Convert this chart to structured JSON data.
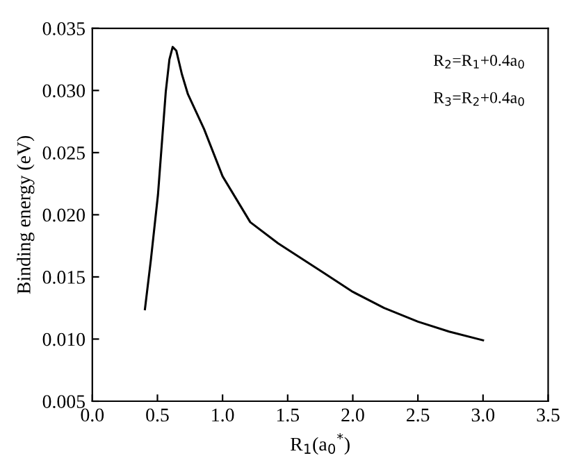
{
  "chart_data": {
    "type": "line",
    "xlabel": "R$_{1}$(a$_{0}$$^{*}$)",
    "ylabel": "Binding energy (eV)",
    "annotations": [
      "R$_{2}$=R$_{1}$+0.4a$_{0}$",
      "R$_{3}$=R$_{2}$+0.4a$_{0}$"
    ],
    "series": [
      {
        "color": "#000000",
        "x": [
          0.404,
          0.45,
          0.504,
          0.564,
          0.592,
          0.617,
          0.645,
          0.688,
          0.734,
          0.787,
          0.858,
          1.0,
          1.213,
          1.426,
          1.5,
          1.78,
          2.0,
          2.24,
          2.5,
          2.74,
          3.0
        ],
        "values": [
          0.0124,
          0.0164,
          0.0216,
          0.0299,
          0.0325,
          0.0335,
          0.0332,
          0.0313,
          0.0297,
          0.0285,
          0.0269,
          0.0231,
          0.0194,
          0.0177,
          0.0172,
          0.0153,
          0.0138,
          0.0125,
          0.0114,
          0.0106,
          0.0099
        ]
      }
    ],
    "xlim": [
      0.0,
      3.5
    ],
    "xticks": [
      {
        "value": 0,
        "label": "0.0"
      },
      0.5,
      {
        "value": 1,
        "label": "1.0"
      },
      1.5,
      {
        "value": 2,
        "label": "2.0"
      },
      2.5,
      {
        "value": 3,
        "label": "3.0"
      },
      3.5
    ],
    "ylim": [
      0.005,
      0.035
    ],
    "yticks": [
      0.005,
      {
        "value": 0.01,
        "label": "0.010"
      },
      0.015,
      {
        "value": 0.02,
        "label": "0.020"
      },
      0.025,
      {
        "value": 0.03,
        "label": "0.030"
      },
      0.035
    ],
    "grid": false,
    "marker": "none",
    "line_style": "solid"
  }
}
